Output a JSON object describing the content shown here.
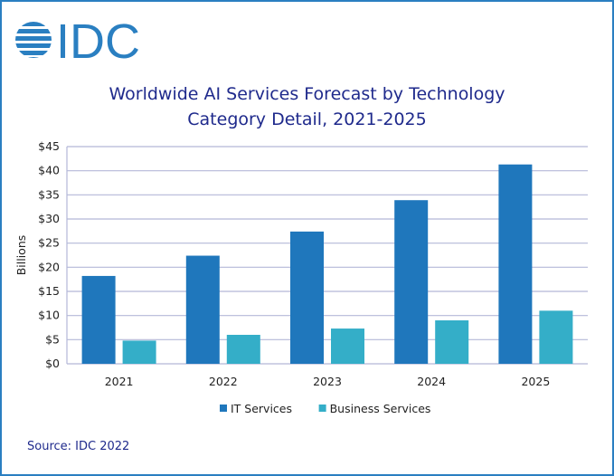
{
  "logo_text": "IDC",
  "source": "Source: IDC 2022",
  "colors": {
    "it": "#1f77bc",
    "business": "#34aec8",
    "grid": "#b4b8d8",
    "title": "#1f2a8c"
  },
  "chart_data": {
    "type": "bar",
    "title_line1": "Worldwide AI Services Forecast by Technology",
    "title_line2": "Category Detail, 2021-2025",
    "ylabel": "Billions",
    "xlabel": "",
    "ylim": [
      0,
      45
    ],
    "yticks": [
      "$0",
      "$5",
      "$10",
      "$15",
      "$20",
      "$25",
      "$30",
      "$35",
      "$40",
      "$45"
    ],
    "grid": true,
    "legend": "bottom",
    "categories": [
      "2021",
      "2022",
      "2023",
      "2024",
      "2025"
    ],
    "series": [
      {
        "name": "IT Services",
        "values": [
          18.2,
          22.4,
          27.4,
          33.9,
          41.3
        ]
      },
      {
        "name": "Business Services",
        "values": [
          4.8,
          6.0,
          7.3,
          9.0,
          11.0
        ]
      }
    ]
  }
}
